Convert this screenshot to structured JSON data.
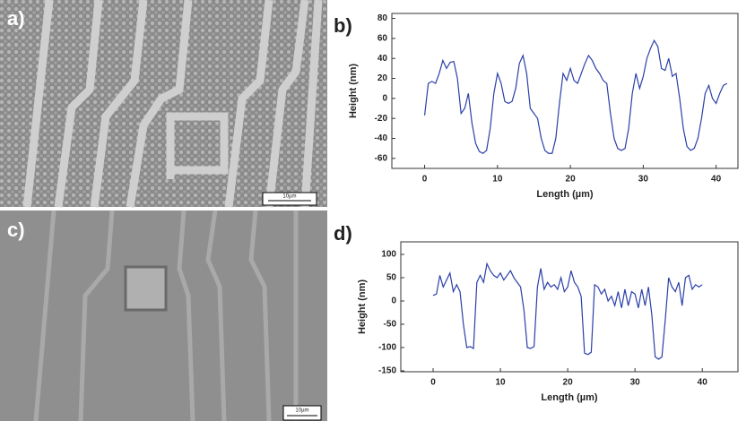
{
  "panels": {
    "a": "a)",
    "c": "c)",
    "scale_a": "10µm",
    "scale_c": "10µm"
  },
  "chart_data": [
    {
      "type": "line",
      "label": "b)",
      "x_label": "Length (µm)",
      "y_label": "Height (nm)",
      "xlim": [
        -4.5,
        43
      ],
      "ylim": [
        -70,
        85
      ],
      "xticks": [
        0,
        10,
        20,
        30,
        40
      ],
      "yticks": [
        -60,
        -40,
        -20,
        0,
        20,
        40,
        60,
        80
      ],
      "series": [
        {
          "color": "#2b3fa8",
          "x": [
            0,
            0.5,
            1,
            1.5,
            2,
            2.5,
            3,
            3.5,
            4,
            4.5,
            5,
            5.5,
            6,
            6.5,
            7,
            7.5,
            8,
            8.5,
            9,
            9.5,
            10,
            10.5,
            11,
            11.5,
            12,
            12.5,
            13,
            13.5,
            14,
            14.5,
            15,
            15.5,
            16,
            16.5,
            17,
            17.5,
            18,
            18.5,
            19,
            19.5,
            20,
            20.5,
            21,
            21.5,
            22,
            22.5,
            23,
            23.5,
            24,
            24.5,
            25,
            25.5,
            26,
            26.5,
            27,
            27.5,
            28,
            28.5,
            29,
            29.5,
            30,
            30.5,
            31,
            31.5,
            32,
            32.5,
            33,
            33.5,
            34,
            34.5,
            35,
            35.5,
            36,
            36.5,
            37,
            37.5,
            38,
            38.5,
            39,
            39.5,
            40,
            40.5,
            41,
            41.5
          ],
          "values": [
            -17,
            15,
            17,
            15,
            25,
            38,
            30,
            36,
            37,
            20,
            -15,
            -10,
            5,
            -25,
            -45,
            -53,
            -55,
            -52,
            -30,
            5,
            25,
            15,
            -3,
            -5,
            -3,
            10,
            35,
            43,
            25,
            -10,
            -15,
            -20,
            -40,
            -52,
            -55,
            -55,
            -40,
            -5,
            25,
            18,
            30,
            18,
            15,
            25,
            35,
            43,
            38,
            30,
            25,
            18,
            15,
            -15,
            -40,
            -50,
            -52,
            -50,
            -30,
            5,
            25,
            10,
            22,
            40,
            50,
            58,
            52,
            30,
            28,
            40,
            22,
            25,
            0,
            -30,
            -48,
            -52,
            -50,
            -40,
            -20,
            5,
            13,
            0,
            -5,
            5,
            13,
            15
          ]
        }
      ]
    },
    {
      "type": "line",
      "label": "d)",
      "x_label": "Length (µm)",
      "y_label": "Height (nm)",
      "xlim": [
        -4.8,
        45.3
      ],
      "ylim": [
        -152,
        127
      ],
      "xticks": [
        0,
        10,
        20,
        30,
        40
      ],
      "yticks": [
        -150,
        -100,
        -50,
        0,
        50,
        100
      ],
      "series": [
        {
          "color": "#2b3fa8",
          "x": [
            0,
            0.5,
            1,
            1.5,
            2,
            2.5,
            3,
            3.5,
            4,
            4.5,
            5,
            5.5,
            6,
            6.5,
            7,
            7.5,
            8,
            8.5,
            9,
            9.5,
            10,
            10.5,
            11,
            11.5,
            12,
            12.5,
            13,
            13.5,
            14,
            14.5,
            15,
            15.5,
            16,
            16.5,
            17,
            17.5,
            18,
            18.5,
            19,
            19.5,
            20,
            20.5,
            21,
            21.5,
            22,
            22.5,
            23,
            23.5,
            24,
            24.5,
            25,
            25.5,
            26,
            26.5,
            27,
            27.5,
            28,
            28.5,
            29,
            29.5,
            30,
            30.5,
            31,
            31.5,
            32,
            32.5,
            33,
            33.5,
            34,
            34.5,
            35,
            35.5,
            36,
            36.5,
            37,
            37.5,
            38,
            38.5,
            39,
            39.5,
            40
          ],
          "values": [
            12,
            15,
            55,
            30,
            45,
            60,
            20,
            35,
            20,
            -50,
            -100,
            -98,
            -102,
            40,
            55,
            40,
            80,
            65,
            55,
            50,
            60,
            45,
            55,
            65,
            50,
            40,
            30,
            -20,
            -100,
            -102,
            -98,
            30,
            70,
            25,
            40,
            30,
            35,
            25,
            50,
            20,
            30,
            65,
            40,
            30,
            10,
            -112,
            -115,
            -110,
            35,
            30,
            15,
            25,
            0,
            10,
            -10,
            20,
            -15,
            25,
            -10,
            20,
            15,
            -15,
            25,
            -10,
            30,
            -30,
            -120,
            -125,
            -120,
            -40,
            50,
            30,
            20,
            40,
            -10,
            50,
            55,
            25,
            35,
            30,
            35
          ]
        }
      ]
    }
  ]
}
